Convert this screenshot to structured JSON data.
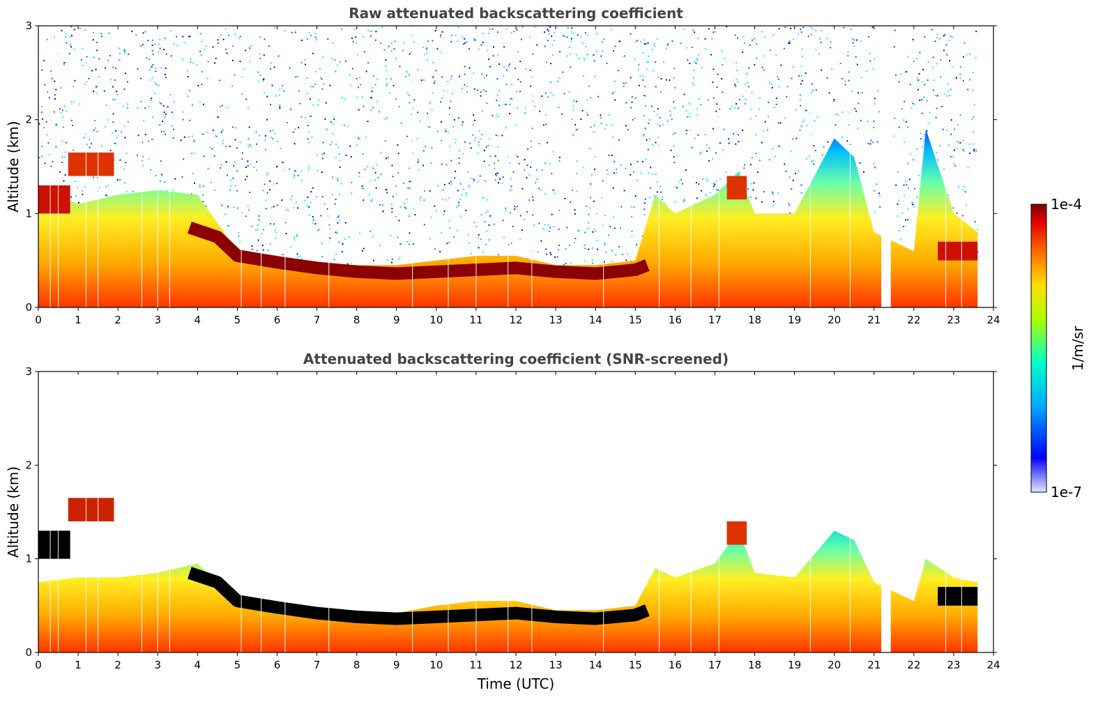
{
  "chart_data": [
    {
      "type": "heatmap",
      "title": "Raw attenuated backscattering coefficient",
      "xlabel": "",
      "ylabel": "Altitude (km)",
      "xlim": [
        0,
        24
      ],
      "ylim": [
        0,
        3
      ],
      "x_ticks": [
        "0",
        "1",
        "2",
        "3",
        "4",
        "5",
        "6",
        "7",
        "8",
        "9",
        "10",
        "11",
        "12",
        "13",
        "14",
        "15",
        "16",
        "17",
        "18",
        "19",
        "20",
        "21",
        "22",
        "23",
        "24"
      ],
      "y_ticks": [
        "0",
        "1",
        "2",
        "3"
      ],
      "boundary_layer_top_km": {
        "x": [
          0,
          1,
          2,
          3,
          4,
          5,
          6,
          7,
          8,
          9,
          10,
          11,
          12,
          13,
          14,
          15,
          15.5,
          16,
          17,
          17.6,
          18,
          19,
          20,
          20.5,
          21,
          22,
          22.3,
          23,
          23.6
        ],
        "y": [
          1.3,
          1.1,
          1.2,
          1.25,
          1.2,
          0.6,
          0.55,
          0.48,
          0.45,
          0.45,
          0.5,
          0.55,
          0.55,
          0.45,
          0.45,
          0.5,
          1.2,
          1.0,
          1.2,
          1.45,
          1.0,
          1.0,
          1.8,
          1.6,
          0.8,
          0.6,
          1.9,
          1.0,
          0.8
        ]
      },
      "noise": true,
      "screened": false
    },
    {
      "type": "heatmap",
      "title": "Attenuated backscattering coefficient (SNR-screened)",
      "xlabel": "Time (UTC)",
      "ylabel": "Altitude (km)",
      "xlim": [
        0,
        24
      ],
      "ylim": [
        0,
        3
      ],
      "x_ticks": [
        "0",
        "1",
        "2",
        "3",
        "4",
        "5",
        "6",
        "7",
        "8",
        "9",
        "10",
        "11",
        "12",
        "13",
        "14",
        "15",
        "16",
        "17",
        "18",
        "19",
        "20",
        "21",
        "22",
        "23",
        "24"
      ],
      "y_ticks": [
        "0",
        "1",
        "2",
        "3"
      ],
      "boundary_layer_top_km": {
        "x": [
          0,
          1,
          2,
          3,
          4,
          5,
          6,
          7,
          8,
          9,
          10,
          11,
          12,
          13,
          14,
          15,
          15.5,
          16,
          17,
          17.6,
          18,
          19,
          20,
          20.5,
          21,
          22,
          22.3,
          23,
          23.6
        ],
        "y": [
          0.75,
          0.8,
          0.8,
          0.85,
          0.95,
          0.55,
          0.55,
          0.45,
          0.42,
          0.42,
          0.5,
          0.55,
          0.55,
          0.45,
          0.45,
          0.5,
          0.9,
          0.8,
          0.95,
          1.3,
          0.85,
          0.8,
          1.3,
          1.2,
          0.75,
          0.55,
          1.0,
          0.8,
          0.75
        ]
      },
      "noise": false,
      "screened": true
    }
  ],
  "colorbar": {
    "label": "1/m/sr",
    "max_label": "1e-4",
    "min_label": "1e-7",
    "colormap": [
      "#e6e6ff",
      "#0000ff",
      "#00aaff",
      "#00ffcc",
      "#aaff00",
      "#ffdd00",
      "#ff6600",
      "#dd0000",
      "#7f0000"
    ]
  }
}
